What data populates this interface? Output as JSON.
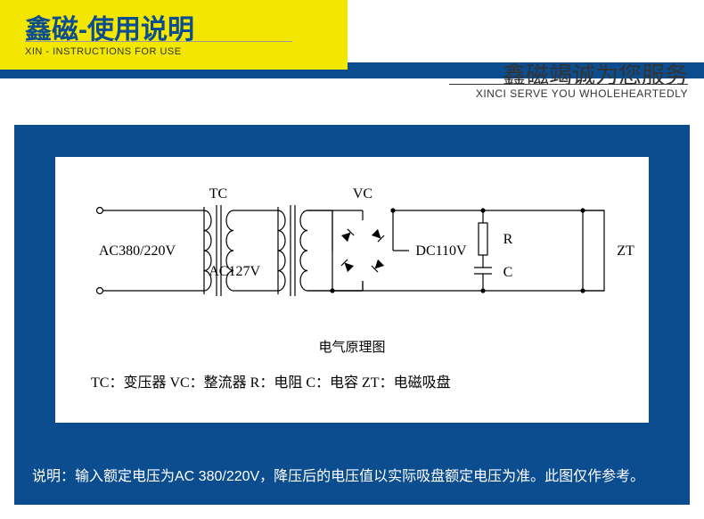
{
  "colors": {
    "blue": "#0c4d8f",
    "yellow": "#f3e600",
    "diagramStroke": "#000000",
    "diagramText": "#000000",
    "noteText": "#ffffff"
  },
  "header": {
    "title_cn": "鑫磁-使用说明",
    "title_en": "XIN - INSTRUCTIONS FOR USE",
    "slogan_cn": "鑫磁竭诚为您服务",
    "slogan_en": "XINCI SERVE YOU WHOLEHEARTEDLY"
  },
  "diagram": {
    "labels": {
      "tc": "TC",
      "vc": "VC",
      "ac_in": "AC380/220V",
      "ac_mid": "AC127V",
      "dc": "DC110V",
      "r": "R",
      "c": "C",
      "zt": "ZT",
      "caption": "电气原理图",
      "legend": "TC：变压器   VC：整流器  R：电阻  C：电容  ZT：电磁吸盘"
    },
    "style": {
      "strokeWidth": 1.2,
      "fontFamily": "SimSun, serif",
      "fontSize": 16,
      "captionFontSize": 15,
      "legendFontSize": 16,
      "terminalRadius": 3.5,
      "tcX": 175,
      "vcX": 258,
      "railTopY": 60,
      "railBotY": 150,
      "bridgeCX": 345,
      "bridgeHalf": 34,
      "rcX": 480,
      "ztX": 592,
      "ztW": 24,
      "resTop": 74,
      "resBot": 110,
      "capY": 130
    }
  },
  "note": "说明：输入额定电压为AC 380/220V，降压后的电压值以实际吸盘额定电压为准。此图仅作参考。"
}
